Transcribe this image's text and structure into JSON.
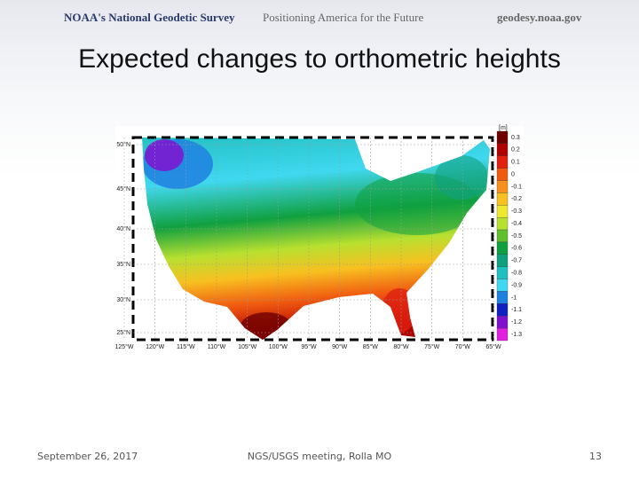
{
  "header": {
    "agency": "NOAA's National Geodetic Survey",
    "tagline": "Positioning America for the Future",
    "site": "geodesy.noaa.gov"
  },
  "title": "Expected changes to orthometric heights",
  "map": {
    "lat_labels": [
      "50°N",
      "45°N",
      "40°N",
      "35°N",
      "30°N",
      "25°N"
    ],
    "lon_labels": [
      "125°W",
      "120°W",
      "115°W",
      "110°W",
      "105°W",
      "100°W",
      "95°W",
      "90°W",
      "85°W",
      "80°W",
      "75°W",
      "70°W",
      "65°W"
    ],
    "colorbar": {
      "unit": "[m]",
      "ticks": [
        0.3,
        0.2,
        0.1,
        0,
        -0.1,
        -0.2,
        -0.3,
        -0.4,
        -0.5,
        -0.6,
        -0.7,
        -0.8,
        -0.9,
        -1,
        -1.1,
        -1.2,
        -1.3
      ],
      "colors": [
        "#6e0000",
        "#b00000",
        "#e02010",
        "#f05a10",
        "#f89020",
        "#f8c020",
        "#f0e830",
        "#b8e030",
        "#60c030",
        "#10a040",
        "#10a080",
        "#20c0c0",
        "#40d8f0",
        "#2080e0",
        "#1020c0",
        "#8010d0",
        "#e020e0"
      ]
    }
  },
  "footer": {
    "date": "September 26, 2017",
    "event": "NGS/USGS meeting, Rolla MO",
    "page": "13"
  }
}
